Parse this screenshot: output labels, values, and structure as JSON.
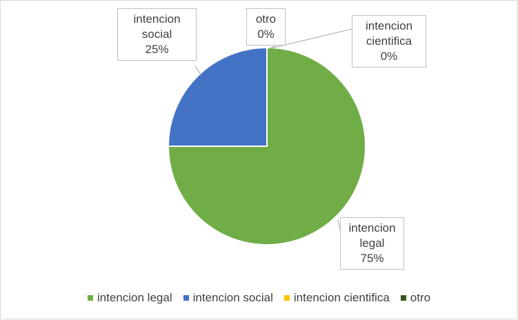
{
  "chart_data": {
    "type": "pie",
    "categories": [
      "intencion legal",
      "intencion social",
      "intencion cientifica",
      "otro"
    ],
    "values": [
      75,
      25,
      0,
      0
    ],
    "value_labels": [
      "75%",
      "25%",
      "0%",
      "0%"
    ],
    "colors": [
      "#70ad47",
      "#4472c4",
      "#ffc000",
      "#375623"
    ],
    "legend": "bottom"
  }
}
